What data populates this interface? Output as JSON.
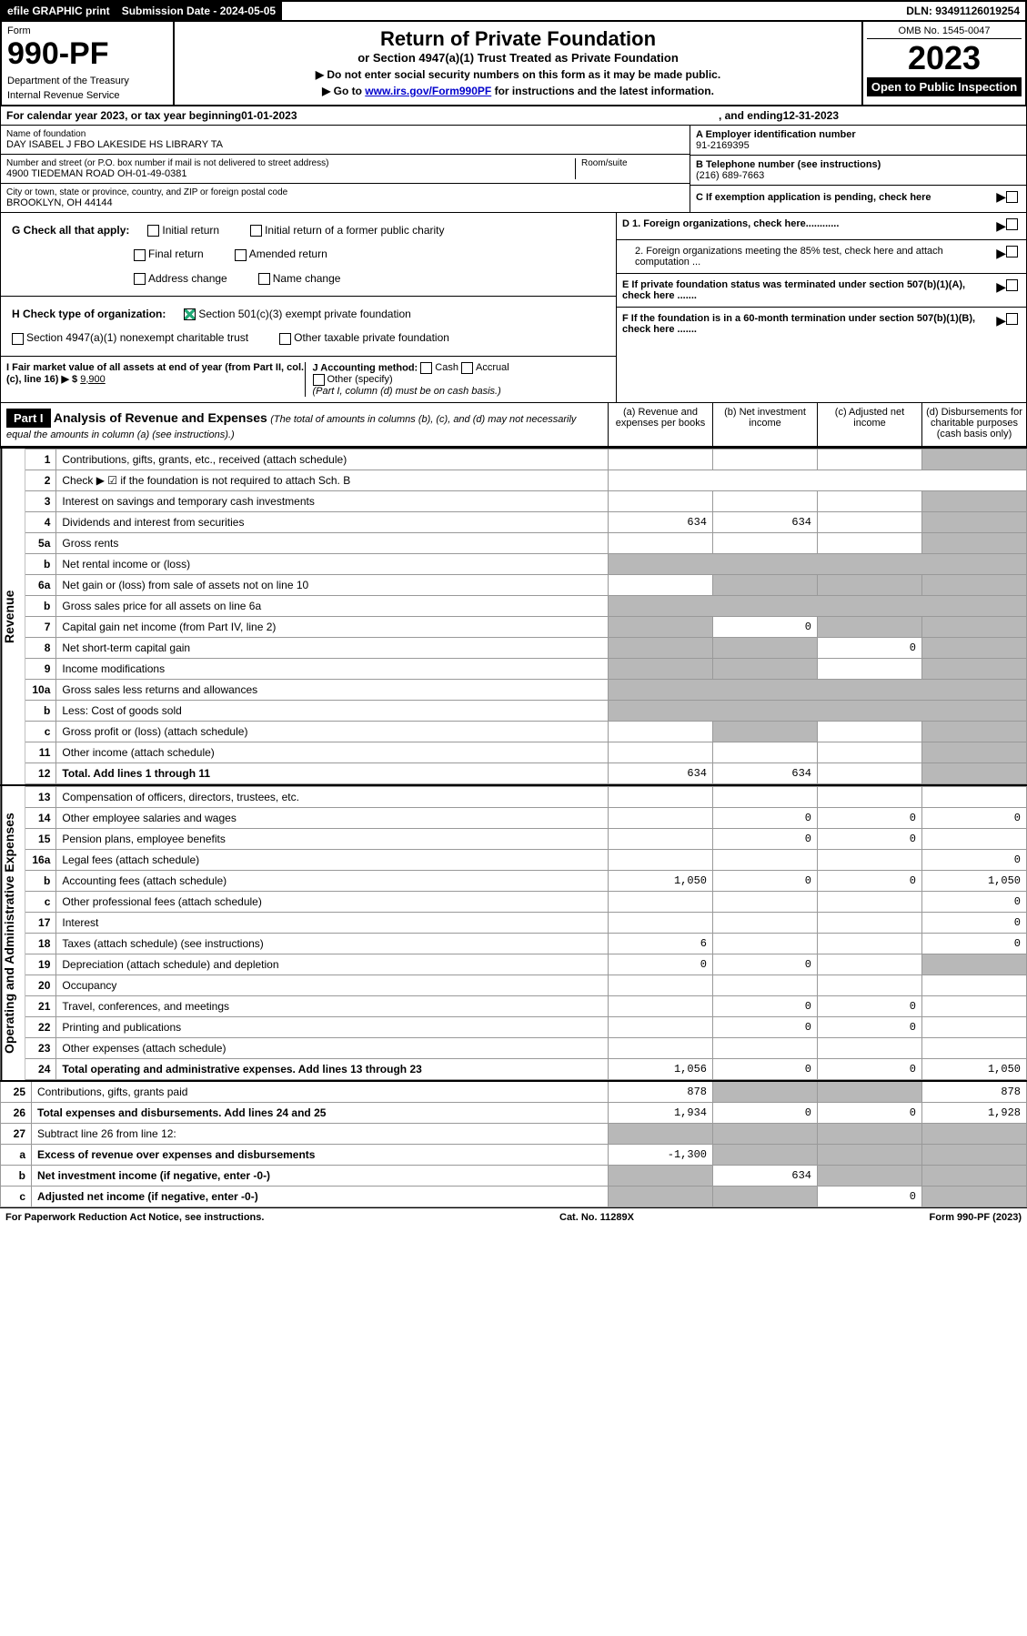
{
  "header_bar": {
    "efile": "efile GRAPHIC print",
    "sub_date_label": "Submission Date - 2024-05-05",
    "dln": "DLN: 93491126019254"
  },
  "form_header": {
    "form_label": "Form",
    "form_num": "990-PF",
    "dept1": "Department of the Treasury",
    "dept2": "Internal Revenue Service",
    "title": "Return of Private Foundation",
    "subtitle": "or Section 4947(a)(1) Trust Treated as Private Foundation",
    "line1": "▶ Do not enter social security numbers on this form as it may be made public.",
    "line2_pre": "▶ Go to ",
    "line2_link": "www.irs.gov/Form990PF",
    "line2_post": " for instructions and the latest information.",
    "omb": "OMB No. 1545-0047",
    "year": "2023",
    "open": "Open to Public Inspection"
  },
  "cal_year": {
    "pre": "For calendar year 2023, or tax year beginning ",
    "begin": "01-01-2023",
    "mid": " , and ending ",
    "end": "12-31-2023"
  },
  "entity": {
    "name_label": "Name of foundation",
    "name": "DAY ISABEL J FBO LAKESIDE HS LIBRARY TA",
    "addr_label": "Number and street (or P.O. box number if mail is not delivered to street address)",
    "addr": "4900 TIEDEMAN ROAD OH-01-49-0381",
    "room_label": "Room/suite",
    "city_label": "City or town, state or province, country, and ZIP or foreign postal code",
    "city": "BROOKLYN, OH  44144",
    "ein_label": "A Employer identification number",
    "ein": "91-2169395",
    "phone_label": "B Telephone number (see instructions)",
    "phone": "(216) 689-7663",
    "c_label": "C If exemption application is pending, check here",
    "d1": "D 1. Foreign organizations, check here............",
    "d2": "2. Foreign organizations meeting the 85% test, check here and attach computation ...",
    "e_label": "E  If private foundation status was terminated under section 507(b)(1)(A), check here .......",
    "f_label": "F  If the foundation is in a 60-month termination under section 507(b)(1)(B), check here .......",
    "g_label": "G Check all that apply:",
    "g_opts": [
      "Initial return",
      "Initial return of a former public charity",
      "Final return",
      "Amended return",
      "Address change",
      "Name change"
    ],
    "h_label": "H Check type of organization:",
    "h1": "Section 501(c)(3) exempt private foundation",
    "h2": "Section 4947(a)(1) nonexempt charitable trust",
    "h3": "Other taxable private foundation",
    "i_label": "I Fair market value of all assets at end of year (from Part II, col. (c), line 16) ▶ $",
    "i_val": "9,900",
    "j_label": "J Accounting method:",
    "j_cash": "Cash",
    "j_accrual": "Accrual",
    "j_other": "Other (specify)",
    "j_note": "(Part I, column (d) must be on cash basis.)"
  },
  "part1": {
    "label": "Part I",
    "title": "Analysis of Revenue and Expenses",
    "note": "(The total of amounts in columns (b), (c), and (d) may not necessarily equal the amounts in column (a) (see instructions).)",
    "cols": {
      "a": "(a)  Revenue and expenses per books",
      "b": "(b)  Net investment income",
      "c": "(c)  Adjusted net income",
      "d": "(d)  Disbursements for charitable purposes (cash basis only)"
    }
  },
  "side_labels": {
    "rev": "Revenue",
    "exp": "Operating and Administrative Expenses"
  },
  "rows": [
    {
      "n": "1",
      "l": "Contributions, gifts, grants, etc., received (attach schedule)",
      "a": "",
      "b": "",
      "c": "",
      "d": "",
      "d_grey": true
    },
    {
      "n": "2",
      "l": "Check ▶ ☑ if the foundation is not required to attach Sch. B",
      "merge": true
    },
    {
      "n": "3",
      "l": "Interest on savings and temporary cash investments",
      "a": "",
      "b": "",
      "c": "",
      "d": "",
      "d_grey": true
    },
    {
      "n": "4",
      "l": "Dividends and interest from securities",
      "a": "634",
      "b": "634",
      "c": "",
      "d": "",
      "d_grey": true
    },
    {
      "n": "5a",
      "l": "Gross rents",
      "a": "",
      "b": "",
      "c": "",
      "d": "",
      "d_grey": true
    },
    {
      "n": "b",
      "l": "Net rental income or (loss)",
      "merge_grey": true
    },
    {
      "n": "6a",
      "l": "Net gain or (loss) from sale of assets not on line 10",
      "a": "",
      "b": "",
      "c": "",
      "d": "",
      "b_grey": true,
      "c_grey": true,
      "d_grey": true
    },
    {
      "n": "b",
      "l": "Gross sales price for all assets on line 6a",
      "merge_grey": true
    },
    {
      "n": "7",
      "l": "Capital gain net income (from Part IV, line 2)",
      "a": "",
      "b": "0",
      "c": "",
      "d": "",
      "a_grey": true,
      "c_grey": true,
      "d_grey": true
    },
    {
      "n": "8",
      "l": "Net short-term capital gain",
      "a": "",
      "b": "",
      "c": "0",
      "d": "",
      "a_grey": true,
      "b_grey": true,
      "d_grey": true
    },
    {
      "n": "9",
      "l": "Income modifications",
      "a": "",
      "b": "",
      "c": "",
      "d": "",
      "a_grey": true,
      "b_grey": true,
      "d_grey": true
    },
    {
      "n": "10a",
      "l": "Gross sales less returns and allowances",
      "merge_grey": true
    },
    {
      "n": "b",
      "l": "Less: Cost of goods sold",
      "merge_grey": true
    },
    {
      "n": "c",
      "l": "Gross profit or (loss) (attach schedule)",
      "a": "",
      "b": "",
      "c": "",
      "d": "",
      "b_grey": true,
      "d_grey": true
    },
    {
      "n": "11",
      "l": "Other income (attach schedule)",
      "a": "",
      "b": "",
      "c": "",
      "d": "",
      "d_grey": true
    },
    {
      "n": "12",
      "l": "Total. Add lines 1 through 11",
      "bold": true,
      "a": "634",
      "b": "634",
      "c": "",
      "d": "",
      "d_grey": true
    },
    {
      "n": "13",
      "l": "Compensation of officers, directors, trustees, etc.",
      "a": "",
      "b": "",
      "c": "",
      "d": ""
    },
    {
      "n": "14",
      "l": "Other employee salaries and wages",
      "a": "",
      "b": "0",
      "c": "0",
      "d": "0"
    },
    {
      "n": "15",
      "l": "Pension plans, employee benefits",
      "a": "",
      "b": "0",
      "c": "0",
      "d": ""
    },
    {
      "n": "16a",
      "l": "Legal fees (attach schedule)",
      "a": "",
      "b": "",
      "c": "",
      "d": "0"
    },
    {
      "n": "b",
      "l": "Accounting fees (attach schedule)",
      "a": "1,050",
      "b": "0",
      "c": "0",
      "d": "1,050"
    },
    {
      "n": "c",
      "l": "Other professional fees (attach schedule)",
      "a": "",
      "b": "",
      "c": "",
      "d": "0"
    },
    {
      "n": "17",
      "l": "Interest",
      "a": "",
      "b": "",
      "c": "",
      "d": "0"
    },
    {
      "n": "18",
      "l": "Taxes (attach schedule) (see instructions)",
      "a": "6",
      "b": "",
      "c": "",
      "d": "0"
    },
    {
      "n": "19",
      "l": "Depreciation (attach schedule) and depletion",
      "a": "0",
      "b": "0",
      "c": "",
      "d": "",
      "d_grey": true
    },
    {
      "n": "20",
      "l": "Occupancy",
      "a": "",
      "b": "",
      "c": "",
      "d": ""
    },
    {
      "n": "21",
      "l": "Travel, conferences, and meetings",
      "a": "",
      "b": "0",
      "c": "0",
      "d": ""
    },
    {
      "n": "22",
      "l": "Printing and publications",
      "a": "",
      "b": "0",
      "c": "0",
      "d": ""
    },
    {
      "n": "23",
      "l": "Other expenses (attach schedule)",
      "a": "",
      "b": "",
      "c": "",
      "d": ""
    },
    {
      "n": "24",
      "l": "Total operating and administrative expenses. Add lines 13 through 23",
      "bold": true,
      "a": "1,056",
      "b": "0",
      "c": "0",
      "d": "1,050"
    },
    {
      "n": "25",
      "l": "Contributions, gifts, grants paid",
      "a": "878",
      "b": "",
      "c": "",
      "d": "878",
      "b_grey": true,
      "c_grey": true
    },
    {
      "n": "26",
      "l": "Total expenses and disbursements. Add lines 24 and 25",
      "bold": true,
      "a": "1,934",
      "b": "0",
      "c": "0",
      "d": "1,928"
    },
    {
      "n": "27",
      "l": "Subtract line 26 from line 12:",
      "a": "",
      "b": "",
      "c": "",
      "d": "",
      "a_grey": true,
      "b_grey": true,
      "c_grey": true,
      "d_grey": true
    },
    {
      "n": "a",
      "l": "Excess of revenue over expenses and disbursements",
      "bold": true,
      "a": "-1,300",
      "b": "",
      "c": "",
      "d": "",
      "b_grey": true,
      "c_grey": true,
      "d_grey": true
    },
    {
      "n": "b",
      "l": "Net investment income (if negative, enter -0-)",
      "bold": true,
      "a": "",
      "b": "634",
      "c": "",
      "d": "",
      "a_grey": true,
      "c_grey": true,
      "d_grey": true
    },
    {
      "n": "c",
      "l": "Adjusted net income (if negative, enter -0-)",
      "bold": true,
      "a": "",
      "b": "",
      "c": "0",
      "d": "",
      "a_grey": true,
      "b_grey": true,
      "d_grey": true
    }
  ],
  "footer": {
    "left": "For Paperwork Reduction Act Notice, see instructions.",
    "center": "Cat. No. 11289X",
    "right": "Form 990-PF (2023)"
  },
  "colors": {
    "black": "#000000",
    "grey_cell": "#b8b8b8",
    "link": "#0000cc",
    "check_green": "#22aa77"
  }
}
